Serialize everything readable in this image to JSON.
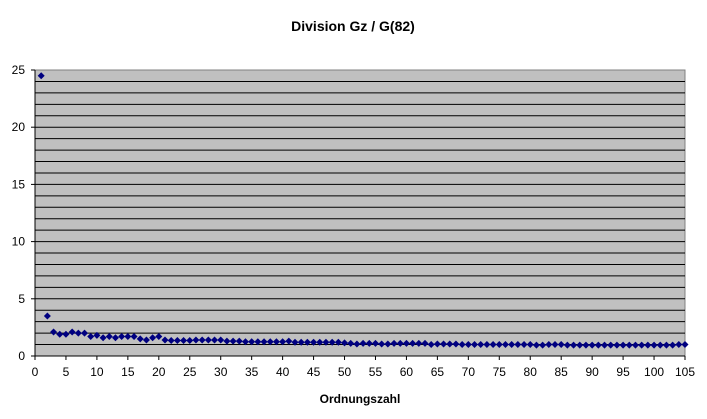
{
  "chart_data": {
    "type": "scatter",
    "title": "Division Gz / G(82)",
    "xlabel": "Ordnungszahl",
    "ylabel": "",
    "xlim": [
      0,
      105
    ],
    "ylim": [
      0,
      25
    ],
    "x_ticks": [
      0,
      5,
      10,
      15,
      20,
      25,
      30,
      35,
      40,
      45,
      50,
      55,
      60,
      65,
      70,
      75,
      80,
      85,
      90,
      95,
      100,
      105
    ],
    "y_ticks": [
      0,
      5,
      10,
      15,
      20,
      25
    ],
    "grid": {
      "horizontal_step": 1,
      "vertical": false
    },
    "legend": null,
    "marker": "diamond",
    "colors": {
      "marker": "#000080",
      "plot_bg": "#c0c0c0",
      "grid": "#000000"
    },
    "series": [
      {
        "name": "Gz / G(82)",
        "x": [
          1,
          2,
          3,
          4,
          5,
          6,
          7,
          8,
          9,
          10,
          11,
          12,
          13,
          14,
          15,
          16,
          17,
          18,
          19,
          20,
          21,
          22,
          23,
          24,
          25,
          26,
          27,
          28,
          29,
          30,
          31,
          32,
          33,
          34,
          35,
          36,
          37,
          38,
          39,
          40,
          41,
          42,
          43,
          44,
          45,
          46,
          47,
          48,
          49,
          50,
          51,
          52,
          53,
          54,
          55,
          56,
          57,
          58,
          59,
          60,
          61,
          62,
          63,
          64,
          65,
          66,
          67,
          68,
          69,
          70,
          71,
          72,
          73,
          74,
          75,
          76,
          77,
          78,
          79,
          80,
          81,
          82,
          83,
          84,
          85,
          86,
          87,
          88,
          89,
          90,
          91,
          92,
          93,
          94,
          95,
          96,
          97,
          98,
          99,
          100,
          101,
          102,
          103,
          104,
          105
        ],
        "values": [
          24.5,
          3.5,
          2.1,
          1.9,
          1.9,
          2.1,
          2.0,
          2.0,
          1.7,
          1.8,
          1.6,
          1.7,
          1.6,
          1.7,
          1.7,
          1.7,
          1.5,
          1.4,
          1.6,
          1.7,
          1.4,
          1.35,
          1.35,
          1.35,
          1.35,
          1.4,
          1.4,
          1.4,
          1.4,
          1.4,
          1.3,
          1.3,
          1.3,
          1.25,
          1.25,
          1.25,
          1.25,
          1.25,
          1.25,
          1.25,
          1.3,
          1.2,
          1.2,
          1.2,
          1.2,
          1.2,
          1.2,
          1.2,
          1.2,
          1.15,
          1.1,
          1.05,
          1.1,
          1.1,
          1.1,
          1.05,
          1.05,
          1.1,
          1.1,
          1.1,
          1.1,
          1.1,
          1.1,
          1.0,
          1.05,
          1.05,
          1.05,
          1.05,
          1.0,
          1.0,
          1.0,
          1.0,
          1.0,
          1.0,
          1.0,
          1.0,
          1.0,
          1.0,
          1.0,
          1.0,
          0.95,
          0.95,
          1.0,
          1.0,
          1.0,
          0.95,
          0.95,
          0.95,
          0.95,
          0.95,
          0.95,
          0.95,
          0.95,
          0.95,
          0.95,
          0.95,
          0.95,
          0.95,
          0.95,
          0.95,
          0.95,
          0.95,
          0.95,
          1.0,
          1.0
        ]
      }
    ]
  }
}
